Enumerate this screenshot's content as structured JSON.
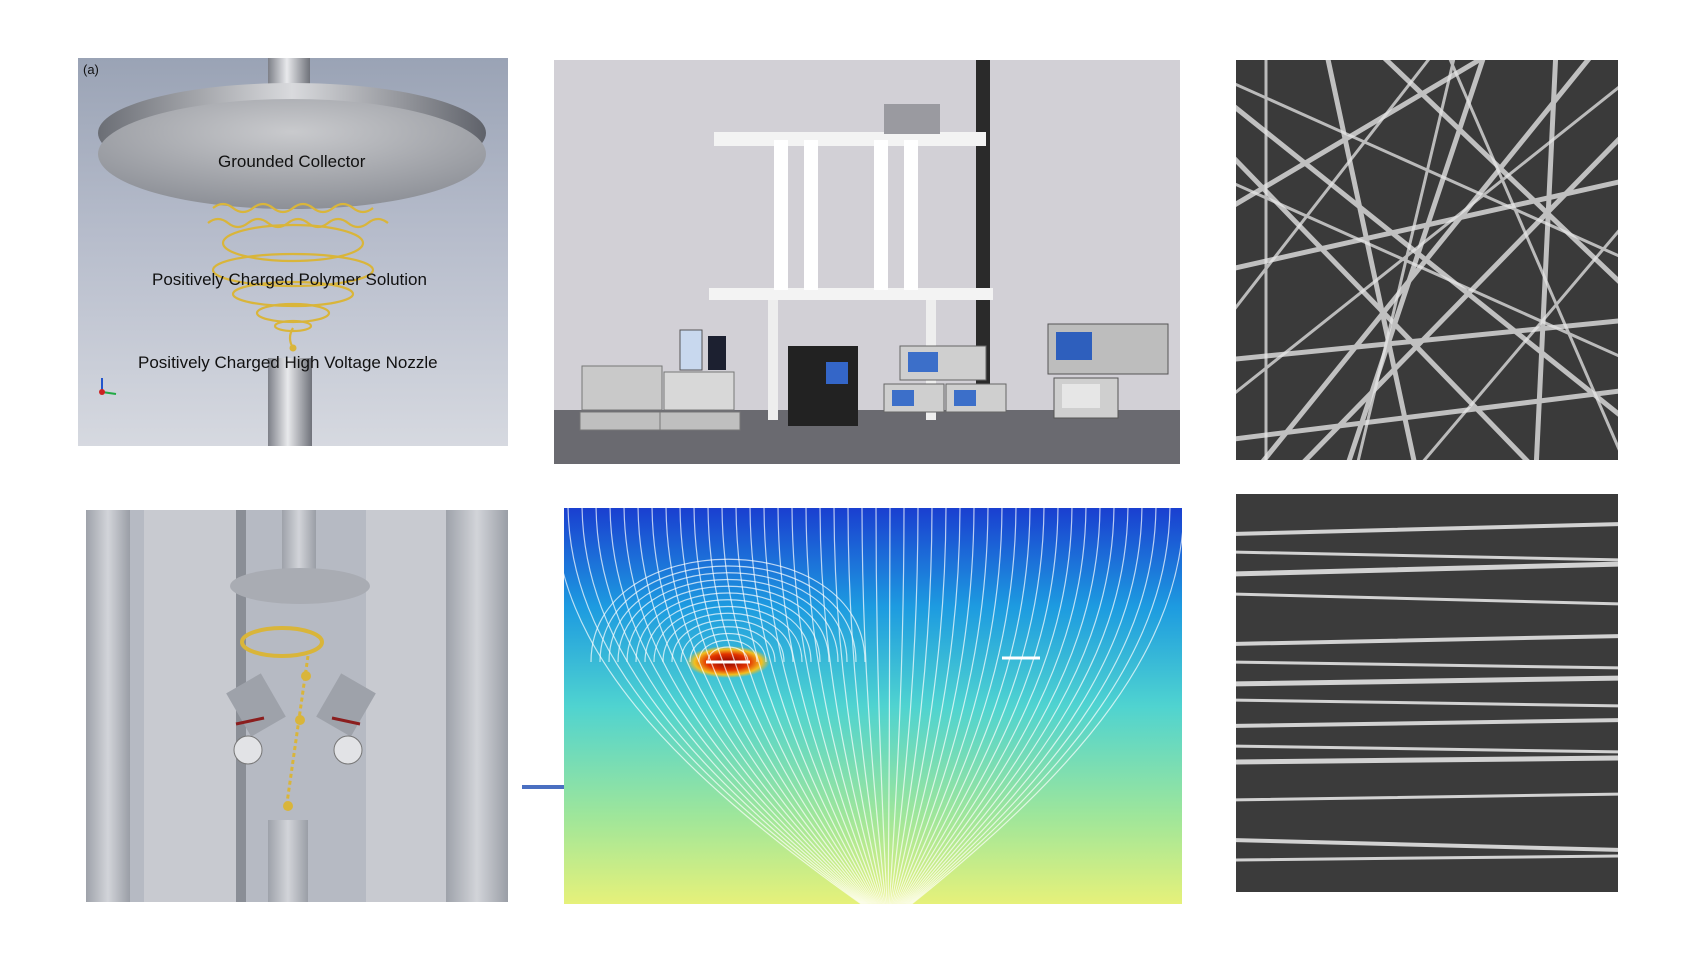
{
  "panel_a": {
    "panel_letter": "(a)",
    "collector_label": "Grounded Collector",
    "solution_label": "Positively Charged Polymer Solution",
    "nozzle_label": "Positively Charged High Voltage Nozzle"
  },
  "colors": {
    "connector": "#4a6fc1",
    "jet_gold": "#d9b53a",
    "field_high": "#b00000",
    "field_low": "#1a3fd0"
  }
}
